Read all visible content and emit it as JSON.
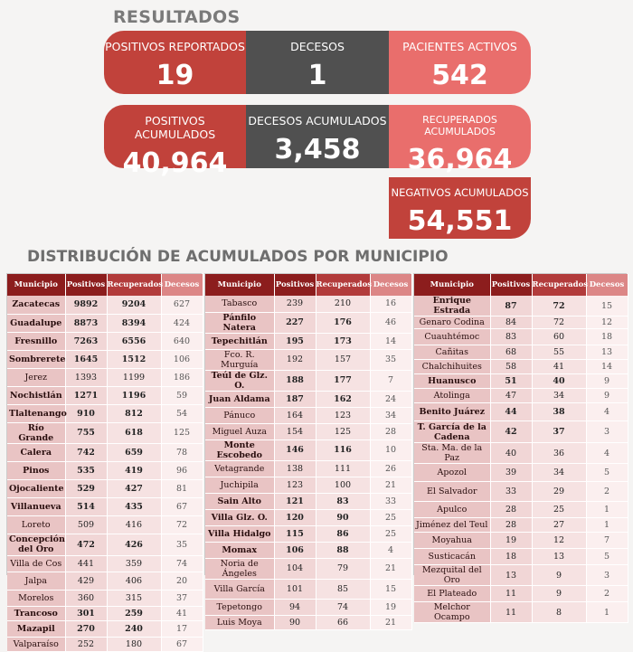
{
  "header": {
    "title": "RESULTADOS"
  },
  "cards": {
    "positivos_reportados": {
      "label": "POSITIVOS REPORTADOS",
      "value": "19"
    },
    "decesos": {
      "label": "DECESOS",
      "value": "1"
    },
    "pacientes_activos": {
      "label": "PACIENTES ACTIVOS",
      "value": "542"
    },
    "positivos_acumulados": {
      "label": "POSITIVOS ACUMULADOS",
      "value": "40,964"
    },
    "decesos_acumulados": {
      "label": "DECESOS ACUMULADOS",
      "value": "3,458"
    },
    "recuperados_acumulados": {
      "label": "RECUPERADOS ACUMULADOS",
      "value": "36,964"
    },
    "negativos_acumulados": {
      "label": "NEGATIVOS ACUMULADOS",
      "value": "54,551"
    }
  },
  "colors": {
    "red": "#c1423b",
    "gray": "#505050",
    "pink": "#e96e6c",
    "header_dark": "#8c1d1d"
  },
  "section": {
    "title": "DISTRIBUCIÓN DE ACUMULADOS POR MUNICIPIO"
  },
  "columns": [
    "Municipio",
    "Positivos",
    "Recuperados",
    "Decesos"
  ],
  "tables": [
    {
      "rows": [
        [
          "Zacatecas",
          "9892",
          "9204",
          "627",
          1,
          20
        ],
        [
          "Guadalupe",
          "8873",
          "8394",
          "424",
          1,
          20
        ],
        [
          "Fresnillo",
          "7263",
          "6556",
          "640",
          1,
          20
        ],
        [
          "Sombrerete",
          "1645",
          "1512",
          "106",
          1,
          20
        ],
        [
          "Jerez",
          "1393",
          "1199",
          "186",
          0,
          20
        ],
        [
          "Nochistlán",
          "1271",
          "1196",
          "59",
          1,
          20
        ],
        [
          "Tlaltenango",
          "910",
          "812",
          "54",
          1,
          20
        ],
        [
          "Río Grande",
          "755",
          "618",
          "125",
          1,
          20
        ],
        [
          "Calera",
          "742",
          "659",
          "78",
          1,
          20
        ],
        [
          "Pinos",
          "535",
          "419",
          "96",
          1,
          20
        ],
        [
          "Ojocaliente",
          "529",
          "427",
          "81",
          1,
          20
        ],
        [
          "Villanueva",
          "514",
          "435",
          "67",
          1,
          20
        ],
        [
          "Loreto",
          "509",
          "416",
          "72",
          0,
          20
        ],
        [
          "Concepción del Oro",
          "472",
          "426",
          "35",
          1,
          24
        ],
        [
          "Villa de Cos",
          "441",
          "359",
          "74",
          0,
          18
        ],
        [
          "Jalpa",
          "429",
          "406",
          "20",
          0,
          20
        ],
        [
          "Morelos",
          "360",
          "315",
          "37",
          0,
          18
        ],
        [
          "Trancoso",
          "301",
          "259",
          "41",
          1,
          16
        ],
        [
          "Mazapil",
          "270",
          "240",
          "17",
          1,
          18
        ],
        [
          "Valparaíso",
          "252",
          "180",
          "67",
          0,
          16
        ]
      ]
    },
    {
      "rows": [
        [
          "Tabasco",
          "239",
          "210",
          "16",
          0,
          18
        ],
        [
          "Pánfilo Natera",
          "227",
          "176",
          "46",
          1,
          18
        ],
        [
          "Tepechitlán",
          "195",
          "173",
          "14",
          1,
          18
        ],
        [
          "Fco. R. Murguía",
          "192",
          "157",
          "35",
          0,
          18
        ],
        [
          "Teúl de Glz. O.",
          "188",
          "177",
          "7",
          1,
          18
        ],
        [
          "Juan Aldama",
          "187",
          "162",
          "24",
          1,
          18
        ],
        [
          "Pánuco",
          "164",
          "123",
          "34",
          0,
          18
        ],
        [
          "Miguel Auza",
          "154",
          "125",
          "28",
          0,
          18
        ],
        [
          "Monte Escobedo",
          "146",
          "116",
          "10",
          1,
          18
        ],
        [
          "Vetagrande",
          "138",
          "111",
          "26",
          0,
          18
        ],
        [
          "Juchipila",
          "123",
          "100",
          "21",
          0,
          18
        ],
        [
          "Sain Alto",
          "121",
          "83",
          "33",
          1,
          18
        ],
        [
          "Villa Glz. O.",
          "120",
          "90",
          "25",
          1,
          18
        ],
        [
          "Villa Hidalgo",
          "115",
          "86",
          "25",
          1,
          18
        ],
        [
          "Momax",
          "106",
          "88",
          "4",
          1,
          18
        ],
        [
          "Noria de Ángeles",
          "104",
          "79",
          "21",
          0,
          18
        ],
        [
          "Villa García",
          "101",
          "85",
          "15",
          0,
          22
        ],
        [
          "Tepetongo",
          "94",
          "74",
          "19",
          0,
          18
        ],
        [
          "Luis Moya",
          "90",
          "66",
          "21",
          0,
          16
        ]
      ]
    },
    {
      "rows": [
        [
          "Enrique Estrada",
          "87",
          "72",
          "15",
          1,
          14
        ],
        [
          "Genaro Codina",
          "84",
          "72",
          "12",
          0,
          14
        ],
        [
          "Cuauhtémoc",
          "83",
          "60",
          "18",
          0,
          18
        ],
        [
          "Cañitas",
          "68",
          "55",
          "13",
          0,
          16
        ],
        [
          "Chalchihuites",
          "58",
          "41",
          "14",
          0,
          16
        ],
        [
          "Huanusco",
          "51",
          "40",
          "9",
          1,
          16
        ],
        [
          "Atolinga",
          "47",
          "34",
          "9",
          0,
          16
        ],
        [
          "Benito Juárez",
          "44",
          "38",
          "4",
          1,
          20
        ],
        [
          "T. García de la Cadena",
          "42",
          "37",
          "3",
          1,
          24
        ],
        [
          "Sta. Ma. de la Paz",
          "40",
          "36",
          "4",
          0,
          16
        ],
        [
          "Apozol",
          "39",
          "34",
          "5",
          0,
          20
        ],
        [
          "El Salvador",
          "33",
          "29",
          "2",
          0,
          22
        ],
        [
          "Apulco",
          "28",
          "25",
          "1",
          0,
          18
        ],
        [
          "Jiménez del Teul",
          "28",
          "27",
          "1",
          0,
          16
        ],
        [
          "Moyahua",
          "19",
          "12",
          "7",
          0,
          18
        ],
        [
          "Susticacán",
          "18",
          "13",
          "5",
          0,
          18
        ],
        [
          "Mezquital del Oro",
          "13",
          "9",
          "3",
          0,
          18
        ],
        [
          "El Plateado",
          "11",
          "9",
          "2",
          0,
          18
        ],
        [
          "Melchor Ocampo",
          "11",
          "8",
          "1",
          0,
          14
        ]
      ]
    }
  ]
}
